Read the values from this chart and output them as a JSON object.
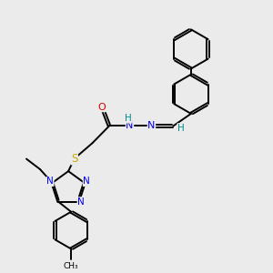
{
  "bg_color": "#ebebeb",
  "line_color": "#000000",
  "bond_width": 1.4,
  "atom_colors": {
    "N": "#0000ee",
    "O": "#dd0000",
    "S": "#ccaa00",
    "H": "#008b8b",
    "C": "#000000"
  },
  "figsize": [
    3.0,
    3.0
  ],
  "dpi": 100
}
